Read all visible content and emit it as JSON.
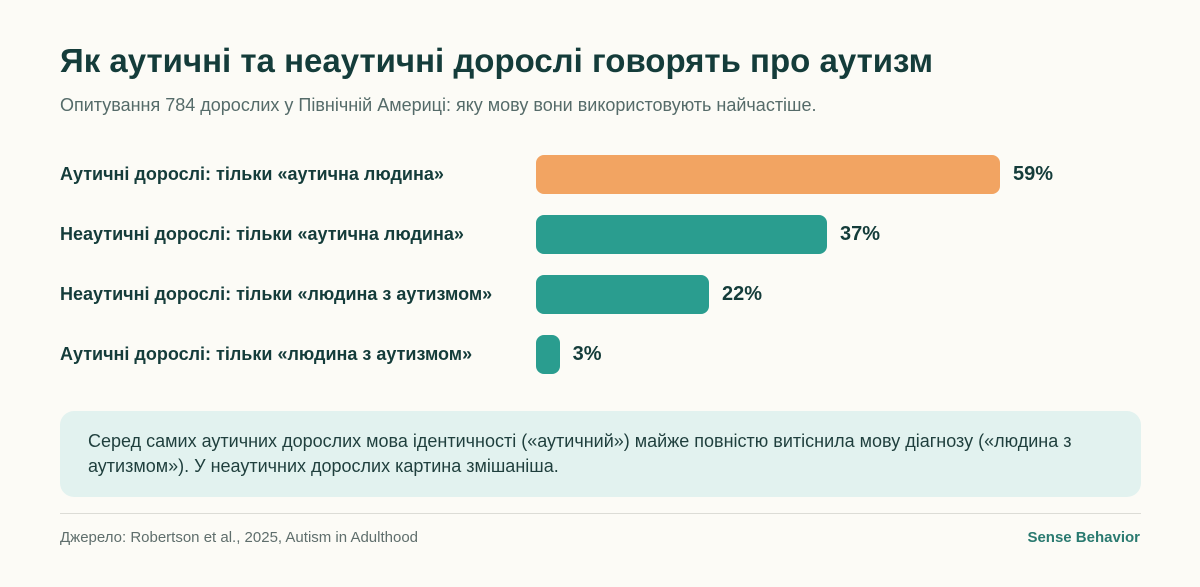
{
  "header": {
    "title": "Як аутичні та неаутичні дорослі говорять про аутизм",
    "subtitle": "Опитування 784 дорослих у Північній Америці: яку мову вони використовують найчастіше."
  },
  "colors": {
    "highlight": "#f2a462",
    "primary": "#2a9d8f",
    "text": "#143c3a",
    "note_background": "#e2f2ef"
  },
  "chart_data": {
    "type": "bar",
    "orientation": "horizontal",
    "unit": "%",
    "xlim": [
      0,
      75
    ],
    "categories": [
      "Аутичні дорослі: тільки «аутична людина»",
      "Неаутичні дорослі: тільки «аутична людина»",
      "Неаутичні дорослі: тільки «людина з аутизмом»",
      "Аутичні дорослі: тільки «людина з аутизмом»"
    ],
    "values": [
      59,
      37,
      22,
      3
    ],
    "value_labels": [
      "59%",
      "37%",
      "22%",
      "3%"
    ],
    "bar_colors": [
      "#f2a462",
      "#2a9d8f",
      "#2a9d8f",
      "#2a9d8f"
    ],
    "title": "Як аутичні та неаутичні дорослі говорять про аутизм",
    "xlabel": "",
    "ylabel": "",
    "grid": false,
    "legend": "none"
  },
  "note": {
    "text": "Серед самих аутичних дорослих мова ідентичності («аутичний») майже повністю витіснила мову діагнозу («людина з аутизмом»). У неаутичних дорослих картина змішаніша."
  },
  "footer": {
    "source": "Джерело: Robertson et al., 2025, Autism in Adulthood",
    "brand": "Sense Behavior"
  }
}
